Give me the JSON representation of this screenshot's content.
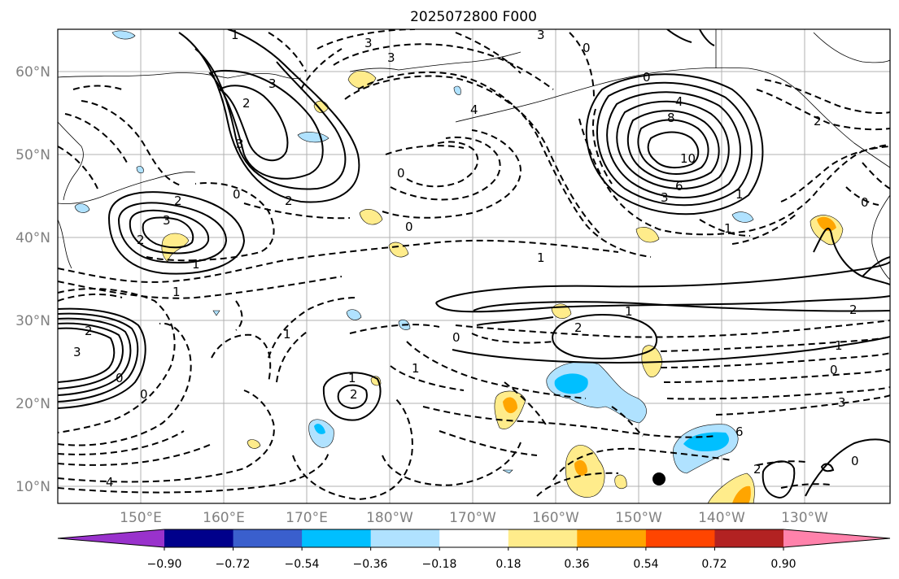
{
  "title": "2025072800 F000",
  "lat_ticks": [
    "60°N",
    "50°N",
    "40°N",
    "30°N",
    "20°N",
    "10°N"
  ],
  "lon_ticks": [
    "150°E",
    "160°E",
    "170°E",
    "180°W",
    "170°W",
    "160°W",
    "150°W",
    "140°W",
    "130°W"
  ],
  "colorbar": {
    "colors": [
      "#9932cc",
      "#00008b",
      "#3a5fcd",
      "#00bfff",
      "#b0e2ff",
      "#ffffff",
      "#ffec8b",
      "#ffa500",
      "#ff4500",
      "#b22222",
      "#ff82ab"
    ],
    "tick_labels": [
      "−0.90",
      "−0.72",
      "−0.54",
      "−0.36",
      "−0.18",
      "0.18",
      "0.36",
      "0.54",
      "0.72",
      "0.90"
    ]
  },
  "contour_labels": [
    "1",
    "2",
    "3",
    "3",
    "2",
    "0",
    "2",
    "3",
    "2",
    "1",
    "1",
    "3",
    "3",
    "4",
    "3",
    "0",
    "0",
    "0",
    "1",
    "0",
    "8",
    "4",
    "10",
    "6",
    "3",
    "1",
    "1",
    "2",
    "0",
    "2",
    "2",
    "1",
    "1",
    "0",
    "0",
    "1",
    "1",
    "2",
    "1",
    "3",
    "6",
    "4",
    "2",
    "3",
    "0",
    "0",
    "2",
    "0"
  ],
  "marker": {
    "label": "point-marker",
    "color": "#000000"
  },
  "colors": {
    "grid": "#b0b0b0",
    "coast": "#000000",
    "axes_text": "#808080"
  }
}
